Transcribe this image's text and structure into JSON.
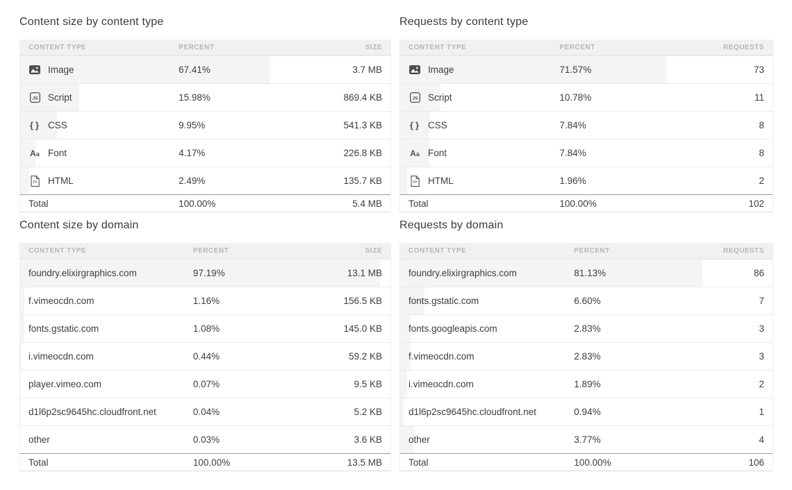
{
  "colors": {
    "bar_fill": "#f4f4f4",
    "header_bg": "#f1f1f1",
    "body_text": "#3d3d3d",
    "header_text": "#b6b6b6",
    "total_rule": "#9c9c9c"
  },
  "tables": [
    {
      "title": "Content size by content type",
      "columns": [
        "Content type",
        "Percent",
        "Size"
      ],
      "rows": [
        {
          "icon": "image-icon",
          "label": "Image",
          "percent": "67.41%",
          "percent_value": 67.41,
          "value": "3.7 MB"
        },
        {
          "icon": "script-icon",
          "label": "Script",
          "percent": "15.98%",
          "percent_value": 15.98,
          "value": "869.4 KB"
        },
        {
          "icon": "css-icon",
          "label": "CSS",
          "percent": "9.95%",
          "percent_value": 9.95,
          "value": "541.3 KB"
        },
        {
          "icon": "font-icon",
          "label": "Font",
          "percent": "4.17%",
          "percent_value": 4.17,
          "value": "226.8 KB"
        },
        {
          "icon": "html-icon",
          "label": "HTML",
          "percent": "2.49%",
          "percent_value": 2.49,
          "value": "135.7 KB"
        }
      ],
      "total": {
        "label": "Total",
        "percent": "100.00%",
        "value": "5.4 MB"
      }
    },
    {
      "title": "Requests by content type",
      "columns": [
        "Content type",
        "Percent",
        "Requests"
      ],
      "rows": [
        {
          "icon": "image-icon",
          "label": "Image",
          "percent": "71.57%",
          "percent_value": 71.57,
          "value": "73"
        },
        {
          "icon": "script-icon",
          "label": "Script",
          "percent": "10.78%",
          "percent_value": 10.78,
          "value": "11"
        },
        {
          "icon": "css-icon",
          "label": "CSS",
          "percent": "7.84%",
          "percent_value": 7.84,
          "value": "8"
        },
        {
          "icon": "font-icon",
          "label": "Font",
          "percent": "7.84%",
          "percent_value": 7.84,
          "value": "8"
        },
        {
          "icon": "html-icon",
          "label": "HTML",
          "percent": "1.96%",
          "percent_value": 1.96,
          "value": "2"
        }
      ],
      "total": {
        "label": "Total",
        "percent": "100.00%",
        "value": "102"
      }
    },
    {
      "title": "Content size by domain",
      "columns": [
        "Content type",
        "Percent",
        "Size"
      ],
      "rows": [
        {
          "label": "foundry.elixirgraphics.com",
          "percent": "97.19%",
          "percent_value": 97.19,
          "value": "13.1 MB"
        },
        {
          "label": "f.vimeocdn.com",
          "percent": "1.16%",
          "percent_value": 1.16,
          "value": "156.5 KB"
        },
        {
          "label": "fonts.gstatic.com",
          "percent": "1.08%",
          "percent_value": 1.08,
          "value": "145.0 KB"
        },
        {
          "label": "i.vimeocdn.com",
          "percent": "0.44%",
          "percent_value": 0.44,
          "value": "59.2 KB"
        },
        {
          "label": "player.vimeo.com",
          "percent": "0.07%",
          "percent_value": 0.07,
          "value": "9.5 KB"
        },
        {
          "label": "d1l6p2sc9645hc.cloudfront.net",
          "percent": "0.04%",
          "percent_value": 0.04,
          "value": "5.2 KB"
        },
        {
          "label": "other",
          "percent": "0.03%",
          "percent_value": 0.03,
          "value": "3.6 KB"
        }
      ],
      "total": {
        "label": "Total",
        "percent": "100.00%",
        "value": "13.5 MB"
      }
    },
    {
      "title": "Requests by domain",
      "columns": [
        "Content type",
        "Percent",
        "Requests"
      ],
      "rows": [
        {
          "label": "foundry.elixirgraphics.com",
          "percent": "81.13%",
          "percent_value": 81.13,
          "value": "86"
        },
        {
          "label": "fonts.gstatic.com",
          "percent": "6.60%",
          "percent_value": 6.6,
          "value": "7"
        },
        {
          "label": "fonts.googleapis.com",
          "percent": "2.83%",
          "percent_value": 2.83,
          "value": "3"
        },
        {
          "label": "f.vimeocdn.com",
          "percent": "2.83%",
          "percent_value": 2.83,
          "value": "3"
        },
        {
          "label": "i.vimeocdn.com",
          "percent": "1.89%",
          "percent_value": 1.89,
          "value": "2"
        },
        {
          "label": "d1l6p2sc9645hc.cloudfront.net",
          "percent": "0.94%",
          "percent_value": 0.94,
          "value": "1"
        },
        {
          "label": "other",
          "percent": "3.77%",
          "percent_value": 3.77,
          "value": "4"
        }
      ],
      "total": {
        "label": "Total",
        "percent": "100.00%",
        "value": "106"
      }
    }
  ]
}
